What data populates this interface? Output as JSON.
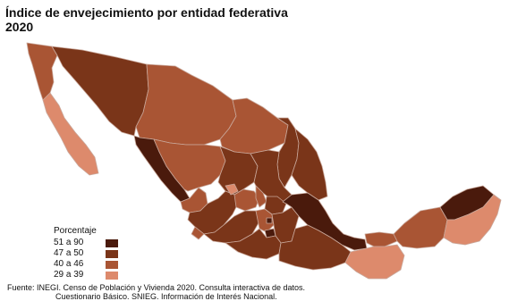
{
  "title": {
    "line1": "Índice de envejecimiento por entidad federativa",
    "line2": "2020"
  },
  "legend": {
    "title": "Porcentaje",
    "items": [
      {
        "label": "51 a 90",
        "color": "#4a1a0c"
      },
      {
        "label": "47 a 50",
        "color": "#7a3519"
      },
      {
        "label": "40 a 46",
        "color": "#a95534"
      },
      {
        "label": "29 a 39",
        "color": "#dd8a6c"
      }
    ]
  },
  "colors": {
    "c1": "#4a1a0c",
    "c2": "#7a3519",
    "c3": "#a95534",
    "c4": "#dd8a6c",
    "border": "#c9a79a"
  },
  "source": {
    "line1": "Fuente: INEGI. Censo de Población y Vivienda 2020. Consulta interactiva de datos.",
    "line2": "Cuestionario Básico. SNIEG. Información de Interés Nacional."
  }
}
